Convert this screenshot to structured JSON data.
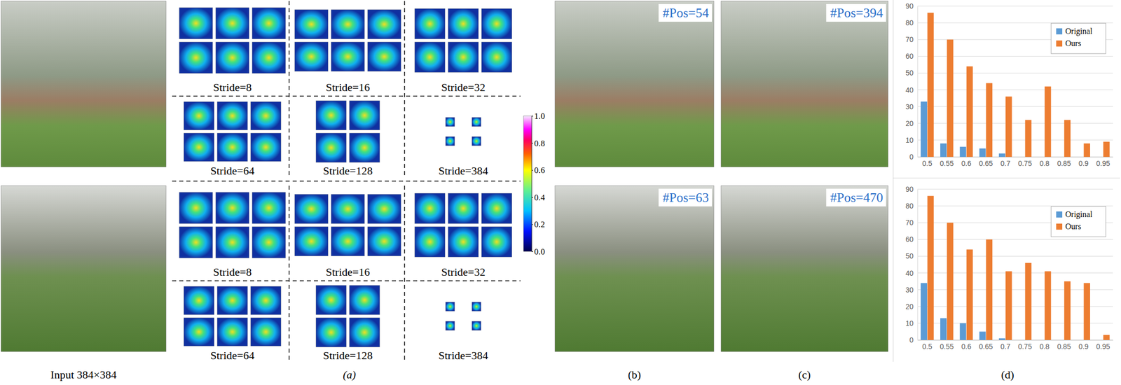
{
  "figure": {
    "input_label": "Input 384×384",
    "panel_labels": [
      "(a)",
      "(b)",
      "(c)",
      "(d)"
    ],
    "rows": [
      {
        "strides": [
          "Stride=8",
          "Stride=16",
          "Stride=32",
          "Stride=64",
          "Stride=128",
          "Stride=384"
        ],
        "pos_original": "#Pos=54",
        "pos_ours": "#Pos=394"
      },
      {
        "strides": [
          "Stride=8",
          "Stride=16",
          "Stride=32",
          "Stride=64",
          "Stride=128",
          "Stride=384"
        ],
        "pos_original": "#Pos=63",
        "pos_ours": "#Pos=470"
      }
    ],
    "colorbar": {
      "range": [
        0,
        1
      ],
      "ticks": [
        {
          "value": 0,
          "label": "0.0"
        },
        {
          "value": 0.2,
          "label": "0.2"
        },
        {
          "value": 0.4,
          "label": "0.4"
        },
        {
          "value": 0.6,
          "label": "0.6"
        },
        {
          "value": 0.8,
          "label": "0.8"
        },
        {
          "value": 1,
          "label": "1.0"
        }
      ]
    }
  },
  "chart_data": [
    {
      "type": "bar",
      "categories": [
        "0.5",
        "0.55",
        "0.6",
        "0.65",
        "0.7",
        "0.75",
        "0.8",
        "0.85",
        "0.9",
        "0.95"
      ],
      "series": [
        {
          "name": "Original",
          "color": "#5b9bd5",
          "values": [
            33,
            8,
            6,
            5,
            2,
            0,
            0,
            0,
            0,
            0
          ]
        },
        {
          "name": "Ours",
          "color": "#ed7d31",
          "values": [
            86,
            70,
            54,
            44,
            36,
            22,
            42,
            22,
            8,
            9
          ]
        }
      ],
      "ylim": [
        0,
        90
      ],
      "yticks": [
        0,
        10,
        20,
        30,
        40,
        50,
        60,
        70,
        80,
        90
      ],
      "grid": true,
      "legend": "top-right"
    },
    {
      "type": "bar",
      "categories": [
        "0.5",
        "0.55",
        "0.6",
        "0.65",
        "0.7",
        "0.75",
        "0.8",
        "0.85",
        "0.9",
        "0.95"
      ],
      "series": [
        {
          "name": "Original",
          "color": "#5b9bd5",
          "values": [
            34,
            13,
            10,
            5,
            1,
            0,
            0,
            0,
            0,
            0
          ]
        },
        {
          "name": "Ours",
          "color": "#ed7d31",
          "values": [
            86,
            70,
            54,
            60,
            41,
            46,
            41,
            35,
            34,
            3
          ]
        }
      ],
      "ylim": [
        0,
        90
      ],
      "yticks": [
        0,
        10,
        20,
        30,
        40,
        50,
        60,
        70,
        80,
        90
      ],
      "grid": true,
      "legend": "top-right"
    }
  ]
}
